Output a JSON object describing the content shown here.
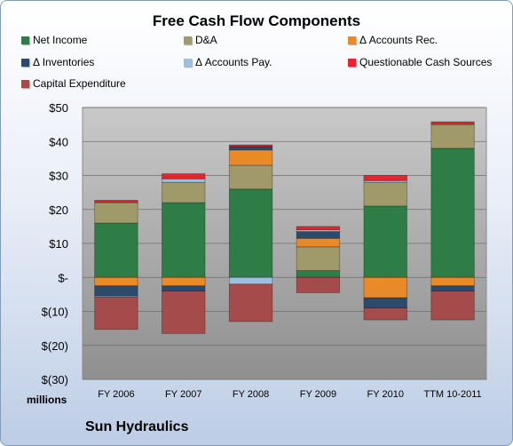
{
  "chart_data": {
    "type": "bar",
    "stacked": true,
    "title": "Free Cash Flow Components",
    "categories": [
      "FY 2006",
      "FY 2007",
      "FY 2008",
      "FY 2009",
      "FY 2010",
      "TTM 10-2011"
    ],
    "ylabel": "millions",
    "ylim": [
      -30,
      50
    ],
    "yticks": [
      50,
      40,
      30,
      20,
      10,
      0,
      -10,
      -20,
      -30
    ],
    "ytick_labels": [
      "$50",
      "$40",
      "$30",
      "$20",
      "$10",
      "$-",
      "$(10)",
      "$(20)",
      "$(30)"
    ],
    "grid": true,
    "legend_position": "top",
    "series": [
      {
        "name": "Net Income",
        "color": "#2e7d46",
        "values": [
          16,
          22,
          26,
          2,
          21,
          38
        ]
      },
      {
        "name": "D&A",
        "color": "#a09a6a",
        "values": [
          6,
          6,
          7,
          7,
          7,
          7
        ]
      },
      {
        "name": "Δ Accounts Rec.",
        "color": "#e98a28",
        "values": [
          -2.5,
          -2.5,
          4.5,
          2.5,
          -6,
          -2.5
        ]
      },
      {
        "name": "Δ Inventories",
        "color": "#2c4a6b",
        "values": [
          -3,
          -1.5,
          1,
          2,
          -3,
          -1.5
        ]
      },
      {
        "name": "Δ Accounts Pay.",
        "color": "#9cc0e0",
        "values": [
          -0.3,
          1,
          -2,
          0.5,
          0.5,
          0
        ]
      },
      {
        "name": "Questionable Cash Sources",
        "color": "#e0262e",
        "values": [
          0.7,
          1.5,
          0.5,
          1,
          1.5,
          0.8
        ]
      },
      {
        "name": "Capital Expenditure",
        "color": "#a54b4b",
        "values": [
          -9.5,
          -12.5,
          -11,
          -4.5,
          -3.5,
          -8.5
        ]
      }
    ]
  },
  "footer": {
    "company": "Sun Hydraulics",
    "units": "millions"
  }
}
